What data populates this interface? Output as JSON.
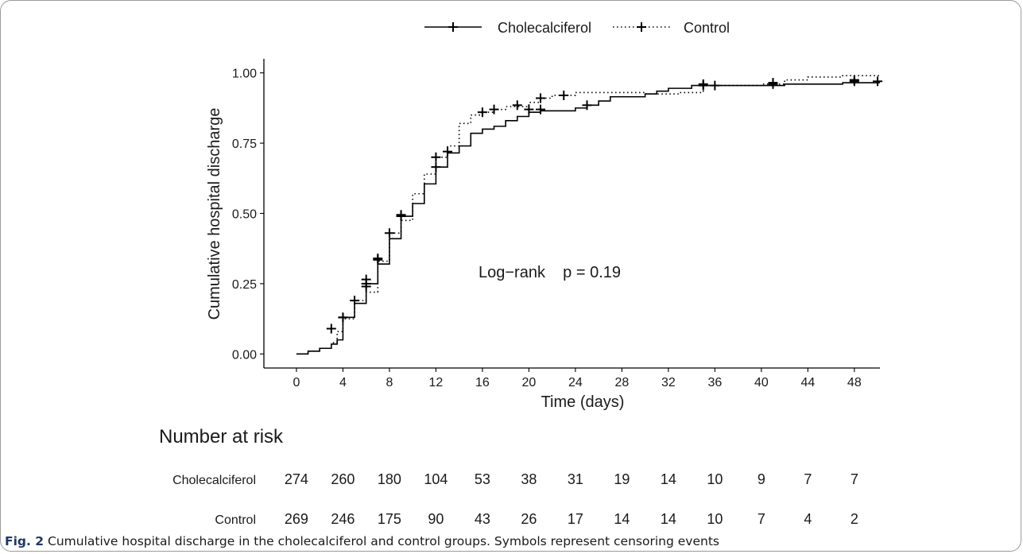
{
  "chart_data": {
    "type": "line",
    "step": true,
    "xlabel": "Time (days)",
    "ylabel": "Cumulative hospital discharge",
    "xlim": [
      -2.8,
      50.2
    ],
    "ylim": [
      -0.05,
      1.05
    ],
    "xticks": [
      "0",
      "4",
      "8",
      "12",
      "16",
      "20",
      "24",
      "28",
      "32",
      "36",
      "40",
      "44",
      "48"
    ],
    "yticks": [
      "0.00",
      "0.25",
      "0.50",
      "0.75",
      "1.00"
    ],
    "grid": false,
    "legend_position": "top",
    "annotation": "Log−rank    p = 0.19",
    "series": [
      {
        "name": "Cholecalciferol",
        "line_style": "solid",
        "color": "#000000",
        "steps": [
          [
            0,
            0
          ],
          [
            1,
            0.01
          ],
          [
            2,
            0.02
          ],
          [
            3,
            0.035
          ],
          [
            3.5,
            0.05
          ],
          [
            4,
            0.13
          ],
          [
            5,
            0.18
          ],
          [
            6,
            0.25
          ],
          [
            7,
            0.32
          ],
          [
            8,
            0.41
          ],
          [
            9,
            0.49
          ],
          [
            10,
            0.535
          ],
          [
            11,
            0.605
          ],
          [
            12,
            0.665
          ],
          [
            13,
            0.715
          ],
          [
            14,
            0.74
          ],
          [
            15,
            0.785
          ],
          [
            16,
            0.8
          ],
          [
            17,
            0.81
          ],
          [
            18,
            0.83
          ],
          [
            19,
            0.845
          ],
          [
            20,
            0.86
          ],
          [
            21,
            0.865
          ],
          [
            24,
            0.875
          ],
          [
            25,
            0.885
          ],
          [
            26,
            0.9
          ],
          [
            27,
            0.915
          ],
          [
            30,
            0.925
          ],
          [
            31,
            0.935
          ],
          [
            32,
            0.945
          ],
          [
            34,
            0.955
          ],
          [
            42,
            0.96
          ],
          [
            47,
            0.965
          ],
          [
            50.2,
            0.965
          ]
        ],
        "censor": [
          [
            4,
            0.13
          ],
          [
            6,
            0.25
          ],
          [
            7,
            0.335
          ],
          [
            8,
            0.43
          ],
          [
            9,
            0.49
          ],
          [
            12,
            0.665
          ],
          [
            21,
            0.87
          ],
          [
            25,
            0.885
          ],
          [
            35,
            0.955
          ],
          [
            36,
            0.955
          ],
          [
            41,
            0.96
          ],
          [
            48,
            0.97
          ],
          [
            50,
            0.97
          ]
        ]
      },
      {
        "name": "Control",
        "line_style": "dotted",
        "color": "#000000",
        "steps": [
          [
            0,
            0
          ],
          [
            1,
            0.01
          ],
          [
            2,
            0.02
          ],
          [
            3,
            0.04
          ],
          [
            3.5,
            0.08
          ],
          [
            4,
            0.125
          ],
          [
            5,
            0.19
          ],
          [
            6,
            0.22
          ],
          [
            7,
            0.33
          ],
          [
            8,
            0.43
          ],
          [
            9,
            0.475
          ],
          [
            10,
            0.57
          ],
          [
            11,
            0.64
          ],
          [
            12,
            0.7
          ],
          [
            13,
            0.74
          ],
          [
            14,
            0.82
          ],
          [
            15,
            0.85
          ],
          [
            16,
            0.86
          ],
          [
            17,
            0.87
          ],
          [
            18,
            0.88
          ],
          [
            20,
            0.895
          ],
          [
            21,
            0.91
          ],
          [
            22,
            0.92
          ],
          [
            24,
            0.93
          ],
          [
            30,
            0.925
          ],
          [
            33,
            0.93
          ],
          [
            35,
            0.955
          ],
          [
            40,
            0.96
          ],
          [
            42,
            0.975
          ],
          [
            44,
            0.985
          ],
          [
            47,
            0.99
          ],
          [
            50.2,
            0.99
          ]
        ],
        "censor": [
          [
            3,
            0.09
          ],
          [
            4,
            0.13
          ],
          [
            5,
            0.19
          ],
          [
            6,
            0.24
          ],
          [
            6,
            0.265
          ],
          [
            7,
            0.34
          ],
          [
            9,
            0.495
          ],
          [
            12,
            0.7
          ],
          [
            13,
            0.72
          ],
          [
            16,
            0.86
          ],
          [
            17,
            0.87
          ],
          [
            19,
            0.885
          ],
          [
            20,
            0.87
          ],
          [
            21,
            0.91
          ],
          [
            23,
            0.92
          ],
          [
            35,
            0.96
          ],
          [
            41,
            0.965
          ],
          [
            48,
            0.975
          ]
        ]
      }
    ]
  },
  "risk_table": {
    "title": "Number at risk",
    "rows": [
      {
        "label": "Cholecalciferol",
        "values": [
          "274",
          "260",
          "180",
          "104",
          "53",
          "38",
          "31",
          "19",
          "14",
          "10",
          "9",
          "7",
          "7"
        ]
      },
      {
        "label": "Control",
        "values": [
          "269",
          "246",
          "175",
          "90",
          "43",
          "26",
          "17",
          "14",
          "14",
          "10",
          "7",
          "4",
          "2"
        ]
      }
    ]
  },
  "caption": {
    "label": "Fig. 2",
    "text": " Cumulative hospital discharge in the cholecalciferol and control groups. Symbols represent censoring events"
  }
}
